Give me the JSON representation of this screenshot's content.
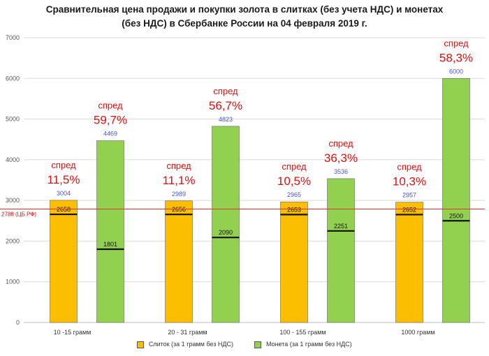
{
  "chart_data": {
    "type": "bar",
    "title": "Сравнительная цена продажи и покупки золота в слитках (без учета НДС) и монетах (без НДС) в Сбербанке России на 04 февраля 2019 г.",
    "title_line1": "Сравнительная цена продажи и покупки золота в слитках (без учета НДС) и монетах",
    "title_line2": "(без НДС) в Сбербанке России на 04 февраля 2019 г.",
    "categories": [
      "10 -15 грамм",
      "20 - 31 грамм",
      "100 - 155 грамм",
      "1000 грамм"
    ],
    "ylim": [
      0,
      7000
    ],
    "yticks": [
      0,
      1000,
      2000,
      3000,
      4000,
      5000,
      6000,
      7000
    ],
    "grid": true,
    "legend_position": "bottom",
    "series": [
      {
        "name": "Слиток (за 1 грамм без НДС)",
        "color": "#fbbe00",
        "sell": [
          3004,
          2989,
          2965,
          2957
        ],
        "buy": [
          2658,
          2656,
          2653,
          2652
        ],
        "spread_word": [
          "спред",
          "спред",
          "спред",
          "спред"
        ],
        "spread": [
          "11,5%",
          "11,1%",
          "10,5%",
          "10,3%"
        ]
      },
      {
        "name": "Монета (за 1 грамм без НДС)",
        "color": "#92d050",
        "sell": [
          4469,
          4823,
          3536,
          6000
        ],
        "buy": [
          1801,
          2090,
          2251,
          2500
        ],
        "spread_word": [
          "спред",
          "спред",
          "спред",
          "спред"
        ],
        "spread": [
          "59,7%",
          "56,7%",
          "36,3%",
          "58,3%"
        ]
      }
    ],
    "reference_line": {
      "value": 2788,
      "label": "2788 (ЦБ РФ)",
      "color": "#e03030"
    }
  }
}
